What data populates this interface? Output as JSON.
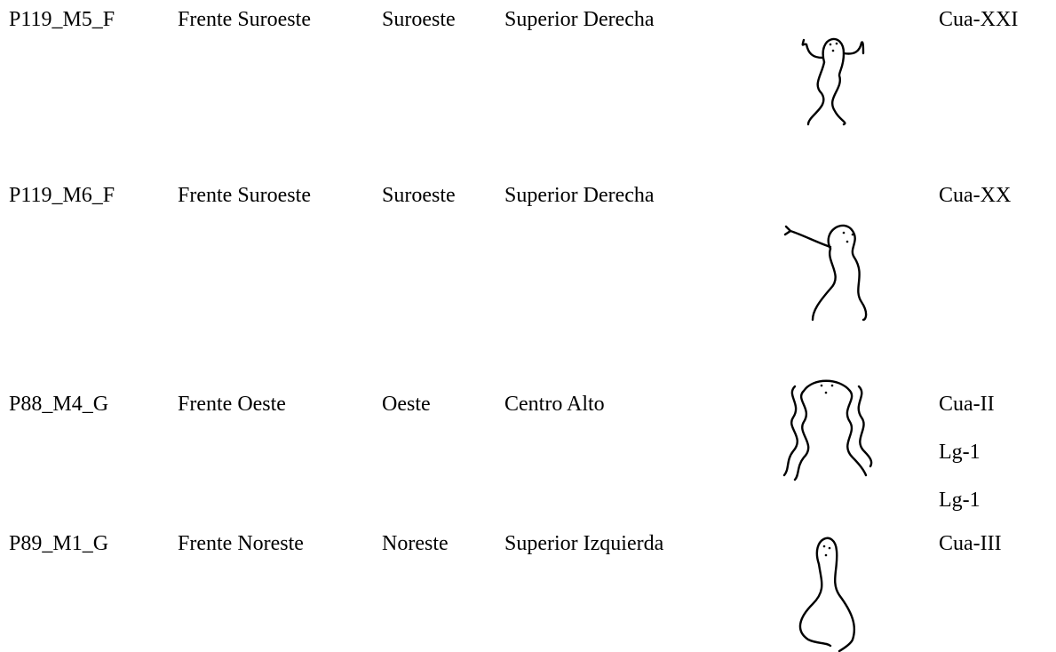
{
  "table": {
    "rows": [
      {
        "id": "P119_M5_F",
        "face": "Frente Suroeste",
        "orientation": "Suroeste",
        "position": "Superior Derecha",
        "codes": [
          "Cua-XXI"
        ]
      },
      {
        "id": "P119_M6_F",
        "face": "Frente Suroeste",
        "orientation": "Suroeste",
        "position": "Superior Derecha",
        "codes": [
          "Cua-XX"
        ]
      },
      {
        "id": "P88_M4_G",
        "face": "Frente Oeste",
        "orientation": "Oeste",
        "position": "Centro Alto",
        "codes": [
          "Cua-II",
          "Lg-1",
          "Lg-1"
        ]
      },
      {
        "id": "P89_M1_G",
        "face": "Frente Noreste",
        "orientation": "Noreste",
        "position": "Superior Izquierda",
        "codes": [
          "Cua-III"
        ]
      }
    ]
  }
}
